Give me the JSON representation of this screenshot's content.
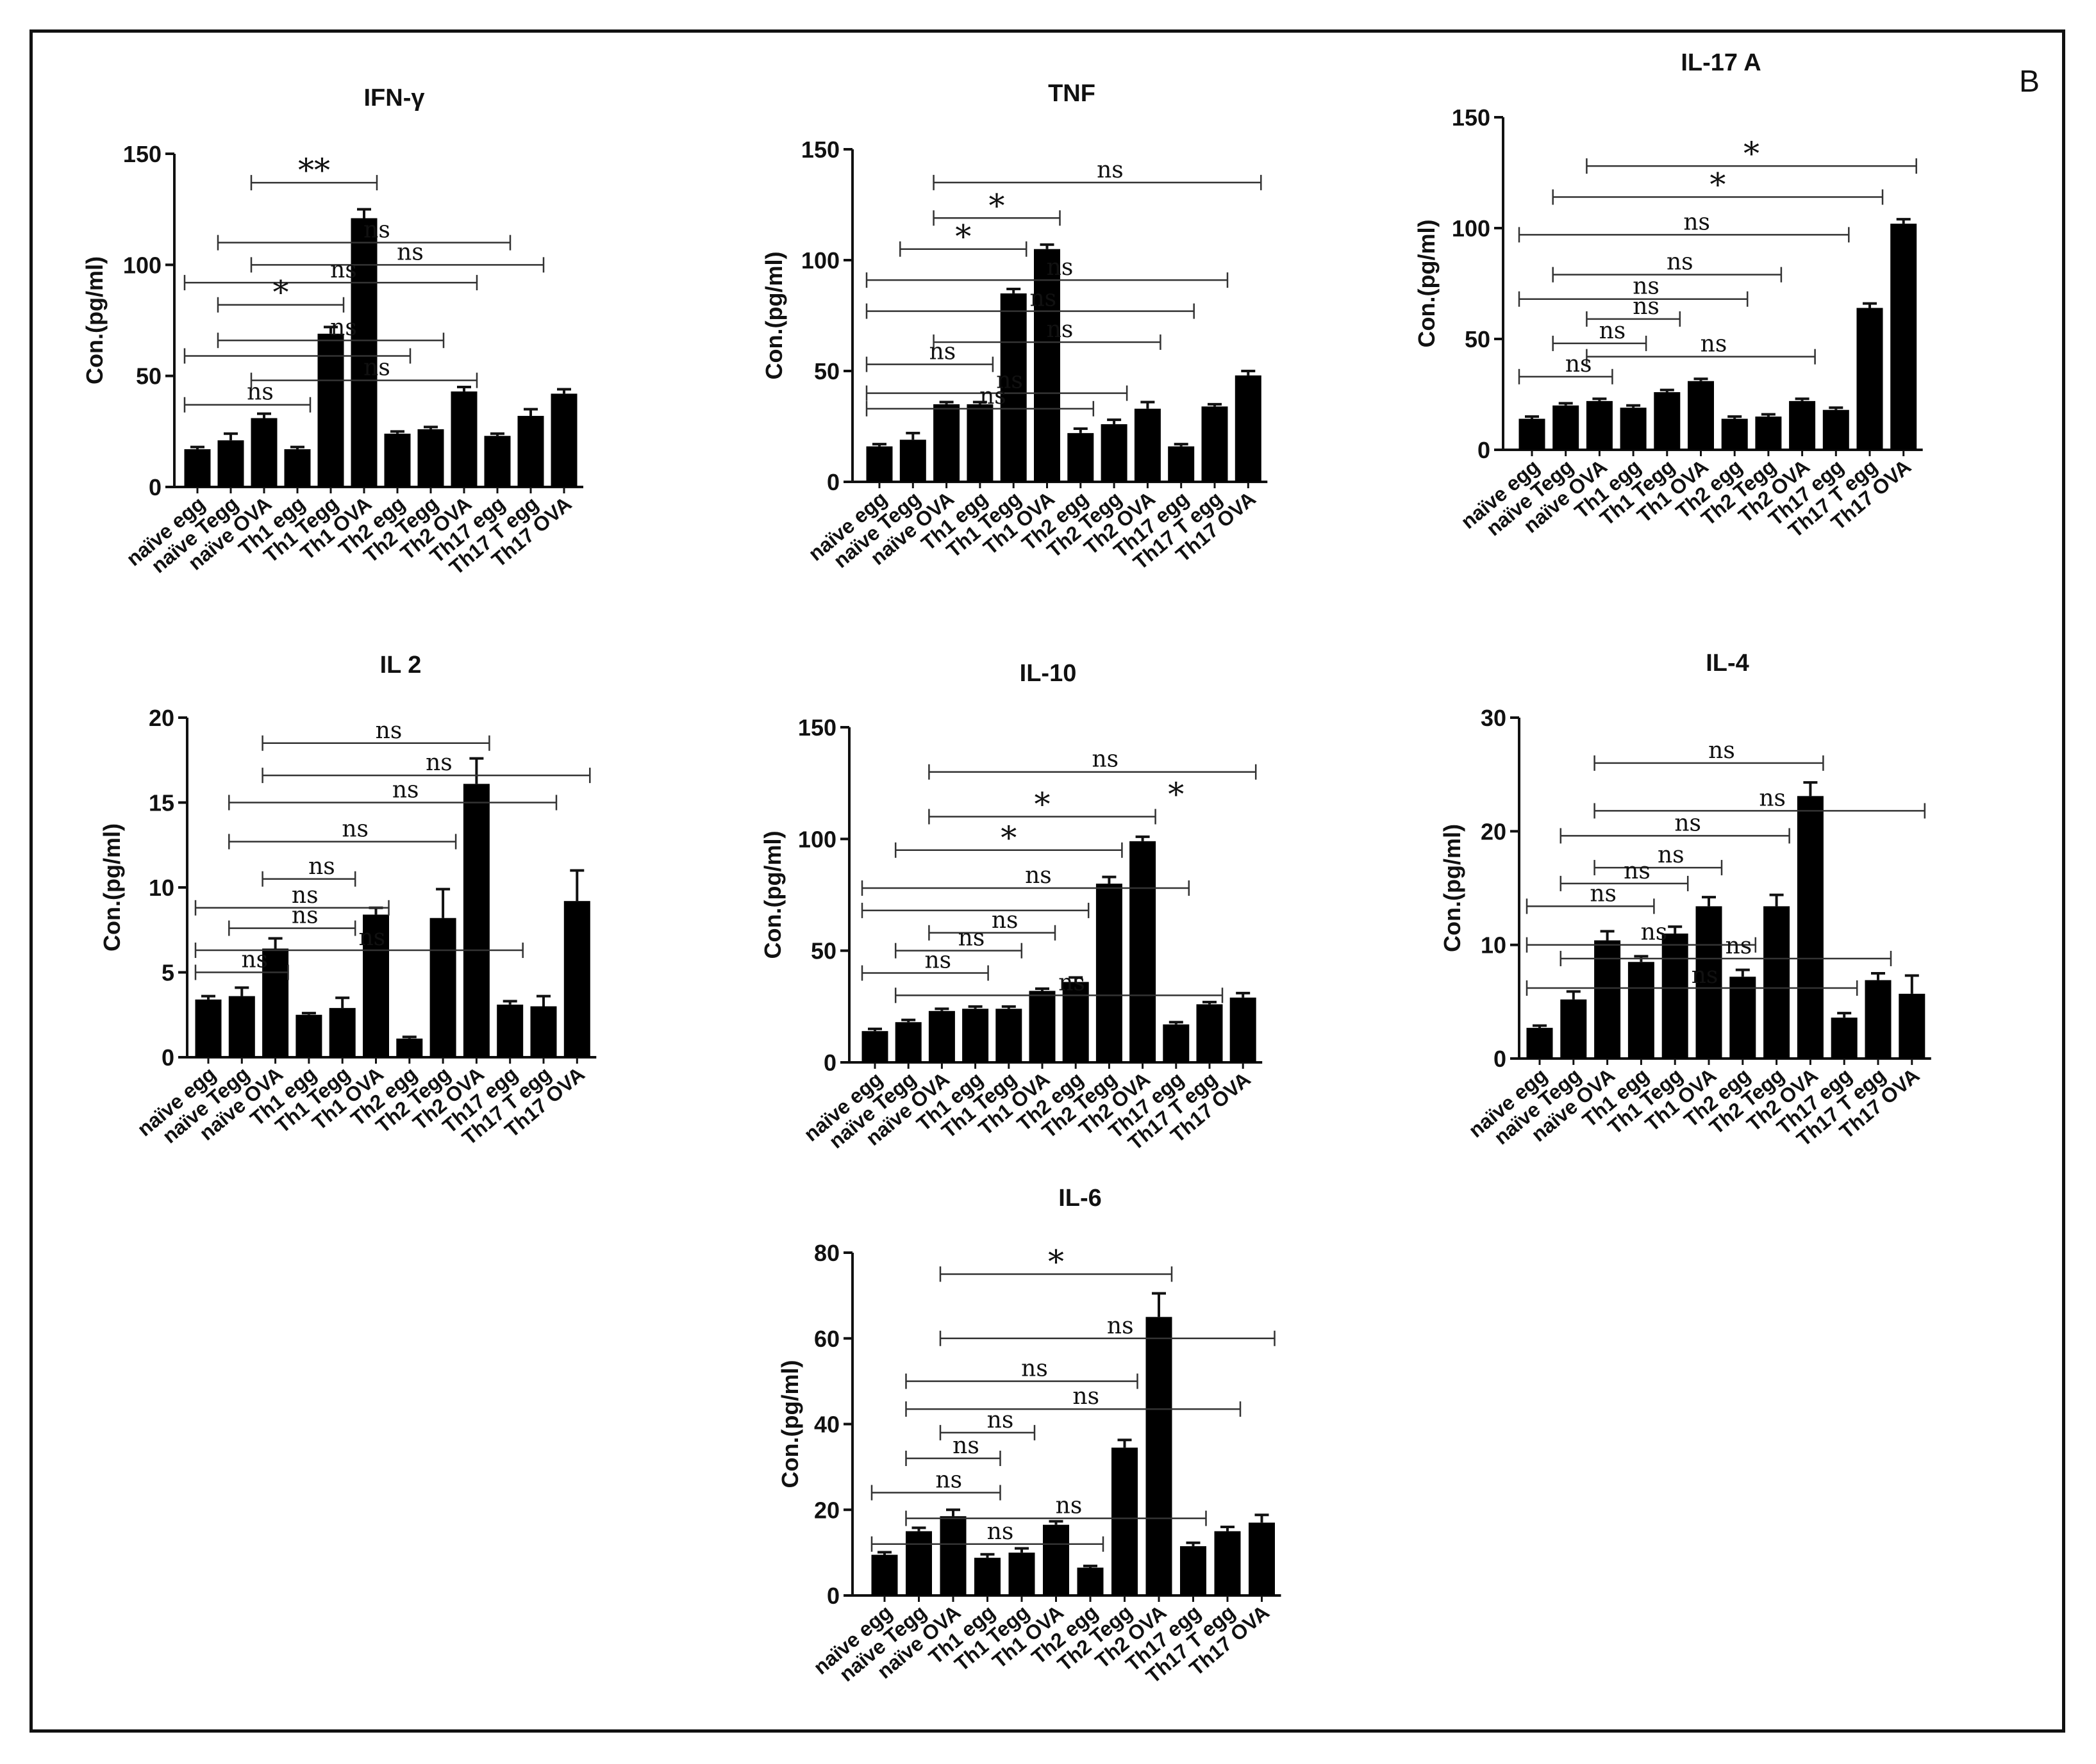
{
  "figure": {
    "panel_label": "B",
    "categories": [
      "naïve egg",
      "naïve Tegg",
      "naïve OVA",
      "Th1 egg",
      "Th1 Tegg",
      "Th1 OVA",
      "Th2 egg",
      "Th2 Tegg",
      "Th2 OVA",
      "Th17 egg",
      "Th17 T egg",
      "Th17 OVA"
    ],
    "bar_color": "#000000",
    "ylabel": "Con.(pg/ml)"
  },
  "chart_data": [
    {
      "type": "bar",
      "title": "IFN-γ",
      "ylabel": "Con.(pg/ml)",
      "ylim": [
        0,
        150
      ],
      "yticks": [
        0,
        50,
        100,
        150
      ],
      "categories": [
        "naïve egg",
        "naïve Tegg",
        "naïve OVA",
        "Th1 egg",
        "Th1 Tegg",
        "Th1 OVA",
        "Th2 egg",
        "Th2 Tegg",
        "Th2 OVA",
        "Th17 egg",
        "Th17 T egg",
        "Th17 OVA"
      ],
      "values": [
        17,
        21,
        31,
        17,
        69,
        121,
        24,
        26,
        43,
        23,
        32,
        42
      ],
      "errors": [
        1,
        3,
        2,
        1,
        3,
        4,
        1,
        1,
        2,
        1,
        3,
        2
      ],
      "brackets": [
        {
          "from": 2,
          "to": 5,
          "y": 137,
          "label": "**"
        },
        {
          "from": 1,
          "to": 9,
          "y": 110,
          "label": "ns"
        },
        {
          "from": 2,
          "to": 10,
          "y": 100,
          "label": "ns"
        },
        {
          "from": 0,
          "to": 8,
          "y": 92,
          "label": "ns"
        },
        {
          "from": 1,
          "to": 4,
          "y": 82,
          "label": "*"
        },
        {
          "from": 1,
          "to": 7,
          "y": 66,
          "label": "ns"
        },
        {
          "from": 0,
          "to": 6,
          "y": 59,
          "label": ""
        },
        {
          "from": 2,
          "to": 8,
          "y": 48,
          "label": "ns"
        },
        {
          "from": 0,
          "to": 3,
          "y": 37,
          "label": "ns"
        }
      ]
    },
    {
      "type": "bar",
      "title": "TNF",
      "ylabel": "Con.(pg/ml)",
      "ylim": [
        0,
        150
      ],
      "yticks": [
        0,
        50,
        100,
        150
      ],
      "categories": [
        "naïve egg",
        "naïve Tegg",
        "naïve OVA",
        "Th1 egg",
        "Th1 Tegg",
        "Th1 OVA",
        "Th2 egg",
        "Th2 Tegg",
        "Th2 OVA",
        "Th17 egg",
        "Th17 T egg",
        "Th17 OVA"
      ],
      "values": [
        16,
        19,
        35,
        35,
        85,
        105,
        22,
        26,
        33,
        16,
        34,
        48
      ],
      "errors": [
        1,
        3,
        1,
        1,
        2,
        2,
        2,
        2,
        3,
        1,
        1,
        2
      ],
      "brackets": [
        {
          "from": 2,
          "to": 11,
          "y": 135,
          "label": "ns"
        },
        {
          "from": 2,
          "to": 5,
          "y": 119,
          "label": "*"
        },
        {
          "from": 1,
          "to": 4,
          "y": 105,
          "label": "*"
        },
        {
          "from": 0,
          "to": 10,
          "y": 91,
          "label": "ns"
        },
        {
          "from": 0,
          "to": 9,
          "y": 77,
          "label": "ns"
        },
        {
          "from": 2,
          "to": 8,
          "y": 63,
          "label": "ns"
        },
        {
          "from": 0,
          "to": 3,
          "y": 53,
          "label": "ns"
        },
        {
          "from": 0,
          "to": 7,
          "y": 40,
          "label": "ns"
        },
        {
          "from": 0,
          "to": 6,
          "y": 33,
          "label": "ns"
        }
      ]
    },
    {
      "type": "bar",
      "title": "IL-17 A",
      "ylabel": "Con.(pg/ml)",
      "ylim": [
        0,
        150
      ],
      "yticks": [
        0,
        50,
        100,
        150
      ],
      "categories": [
        "naïve egg",
        "naïve Tegg",
        "naïve OVA",
        "Th1 egg",
        "Th1 Tegg",
        "Th1 OVA",
        "Th2 egg",
        "Th2 Tegg",
        "Th2 OVA",
        "Th17 egg",
        "Th17 T egg",
        "Th17 OVA"
      ],
      "values": [
        14,
        20,
        22,
        19,
        26,
        31,
        14,
        15,
        22,
        18,
        64,
        102
      ],
      "errors": [
        1,
        1,
        1,
        1,
        1,
        1,
        1,
        1,
        1,
        1,
        2,
        2
      ],
      "brackets": [
        {
          "from": 2,
          "to": 11,
          "y": 128,
          "label": "*"
        },
        {
          "from": 1,
          "to": 10,
          "y": 114,
          "label": "*"
        },
        {
          "from": 0,
          "to": 9,
          "y": 97,
          "label": "ns"
        },
        {
          "from": 1,
          "to": 7,
          "y": 79,
          "label": "ns"
        },
        {
          "from": 0,
          "to": 6,
          "y": 68,
          "label": "ns"
        },
        {
          "from": 2,
          "to": 4,
          "y": 59,
          "label": "ns"
        },
        {
          "from": 1,
          "to": 3,
          "y": 48,
          "label": "ns"
        },
        {
          "from": 2,
          "to": 8,
          "y": 42,
          "label": "ns"
        },
        {
          "from": 0,
          "to": 2,
          "y": 33,
          "label": "ns"
        }
      ]
    },
    {
      "type": "bar",
      "title": "IL 2",
      "ylabel": "Con.(pg/ml)",
      "ylim": [
        0,
        20
      ],
      "yticks": [
        0,
        5,
        10,
        15,
        20
      ],
      "categories": [
        "naïve egg",
        "naïve Tegg",
        "naïve OVA",
        "Th1 egg",
        "Th1 Tegg",
        "Th1 OVA",
        "Th2 egg",
        "Th2 Tegg",
        "Th2 OVA",
        "Th17 egg",
        "Th17 T egg",
        "Th17 OVA"
      ],
      "values": [
        3.4,
        3.6,
        6.4,
        2.5,
        2.9,
        8.4,
        1.1,
        8.2,
        16.1,
        3.1,
        3.0,
        9.2
      ],
      "errors": [
        0.2,
        0.5,
        0.6,
        0.1,
        0.6,
        0.4,
        0.1,
        1.7,
        1.5,
        0.2,
        0.6,
        1.8
      ],
      "brackets": [
        {
          "from": 2,
          "to": 8,
          "y": 18.5,
          "label": "ns"
        },
        {
          "from": 2,
          "to": 11,
          "y": 16.6,
          "label": "ns"
        },
        {
          "from": 1,
          "to": 10,
          "y": 15.0,
          "label": "ns"
        },
        {
          "from": 1,
          "to": 7,
          "y": 12.7,
          "label": "ns"
        },
        {
          "from": 2,
          "to": 4,
          "y": 10.5,
          "label": "ns"
        },
        {
          "from": 0,
          "to": 5,
          "y": 8.8,
          "label": "ns"
        },
        {
          "from": 1,
          "to": 4,
          "y": 7.6,
          "label": "ns"
        },
        {
          "from": 0,
          "to": 9,
          "y": 6.3,
          "label": "ns"
        },
        {
          "from": 0,
          "to": 2,
          "y": 5.0,
          "label": "ns"
        }
      ]
    },
    {
      "type": "bar",
      "title": "IL-10",
      "ylabel": "Con.(pg/ml)",
      "ylim": [
        0,
        150
      ],
      "yticks": [
        0,
        50,
        100,
        150
      ],
      "categories": [
        "naïve egg",
        "naïve Tegg",
        "naïve OVA",
        "Th1 egg",
        "Th1 Tegg",
        "Th1 OVA",
        "Th2 egg",
        "Th2 Tegg",
        "Th2 OVA",
        "Th17 egg",
        "Th17 T egg",
        "Th17 OVA"
      ],
      "values": [
        14,
        18,
        23,
        24,
        24,
        32,
        36,
        80,
        99,
        17,
        26,
        29
      ],
      "errors": [
        1,
        1,
        1,
        1,
        1,
        1,
        2,
        3,
        2,
        1,
        1,
        2
      ],
      "brackets": [
        {
          "from": 2,
          "to": 11,
          "y": 130,
          "label": "ns"
        },
        {
          "from": 2,
          "to": 8,
          "y": 110,
          "label": "*"
        },
        {
          "from": 1,
          "to": 7,
          "y": 95,
          "label": "*"
        },
        {
          "from": 0,
          "to": 9,
          "y": 78,
          "label": "ns"
        },
        {
          "from": 0,
          "to": 6,
          "y": 68,
          "label": ""
        },
        {
          "from": 2,
          "to": 5,
          "y": 58,
          "label": "ns"
        },
        {
          "from": 1,
          "to": 4,
          "y": 50,
          "label": "ns"
        },
        {
          "from": 0,
          "to": 3,
          "y": 40,
          "label": "ns"
        },
        {
          "from": 1,
          "to": 10,
          "y": 30,
          "label": "ns"
        }
      ],
      "extra_marks": [
        {
          "x": 9,
          "y": 115,
          "label": "*"
        }
      ]
    },
    {
      "type": "bar",
      "title": "IL-4",
      "ylabel": "Con.(pg/ml)",
      "ylim": [
        0,
        30
      ],
      "yticks": [
        0,
        10,
        20,
        30
      ],
      "categories": [
        "naïve egg",
        "naïve Tegg",
        "naïve OVA",
        "Th1 egg",
        "Th1 Tegg",
        "Th1 OVA",
        "Th2 egg",
        "Th2 Tegg",
        "Th2 OVA",
        "Th17 egg",
        "Th17 T egg",
        "Th17 OVA"
      ],
      "values": [
        2.7,
        5.2,
        10.4,
        8.5,
        11.0,
        13.4,
        7.2,
        13.4,
        23.1,
        3.6,
        6.9,
        5.7
      ],
      "errors": [
        0.2,
        0.7,
        0.8,
        0.5,
        0.6,
        0.8,
        0.6,
        1.0,
        1.2,
        0.4,
        0.6,
        1.6
      ],
      "brackets": [
        {
          "from": 2,
          "to": 8,
          "y": 26.0,
          "label": "ns"
        },
        {
          "from": 2,
          "to": 11,
          "y": 21.8,
          "label": "ns"
        },
        {
          "from": 1,
          "to": 7,
          "y": 19.6,
          "label": "ns"
        },
        {
          "from": 2,
          "to": 5,
          "y": 16.8,
          "label": "ns"
        },
        {
          "from": 1,
          "to": 4,
          "y": 15.4,
          "label": "ns"
        },
        {
          "from": 0,
          "to": 3,
          "y": 13.4,
          "label": "ns"
        },
        {
          "from": 0,
          "to": 6,
          "y": 10.0,
          "label": "ns"
        },
        {
          "from": 1,
          "to": 10,
          "y": 8.8,
          "label": "ns"
        },
        {
          "from": 0,
          "to": 9,
          "y": 6.2,
          "label": "ns"
        }
      ]
    },
    {
      "type": "bar",
      "title": "IL-6",
      "ylabel": "Con.(pg/ml)",
      "ylim": [
        0,
        80
      ],
      "yticks": [
        0,
        20,
        40,
        60,
        80
      ],
      "categories": [
        "naïve egg",
        "naïve Tegg",
        "naïve OVA",
        "Th1 egg",
        "Th1 Tegg",
        "Th1 OVA",
        "Th2 egg",
        "Th2 Tegg",
        "Th2 OVA",
        "Th17 egg",
        "Th17 T egg",
        "Th17 OVA"
      ],
      "values": [
        9.5,
        15,
        18.5,
        8.8,
        10,
        16.5,
        6.5,
        34.5,
        65,
        11.5,
        15,
        17
      ],
      "errors": [
        0.6,
        0.8,
        1.5,
        0.8,
        1.0,
        0.8,
        0.4,
        1.8,
        5.5,
        0.8,
        1.0,
        1.8
      ],
      "brackets": [
        {
          "from": 2,
          "to": 8,
          "y": 75,
          "label": "*"
        },
        {
          "from": 2,
          "to": 11,
          "y": 60,
          "label": "ns"
        },
        {
          "from": 1,
          "to": 7,
          "y": 50,
          "label": "ns"
        },
        {
          "from": 1,
          "to": 10,
          "y": 43.5,
          "label": "ns"
        },
        {
          "from": 2,
          "to": 4,
          "y": 38,
          "label": "ns"
        },
        {
          "from": 1,
          "to": 3,
          "y": 32,
          "label": "ns"
        },
        {
          "from": 0,
          "to": 3,
          "y": 24,
          "label": "ns"
        },
        {
          "from": 1,
          "to": 9,
          "y": 18,
          "label": "ns"
        },
        {
          "from": 0,
          "to": 6,
          "y": 12,
          "label": "ns"
        }
      ]
    }
  ]
}
